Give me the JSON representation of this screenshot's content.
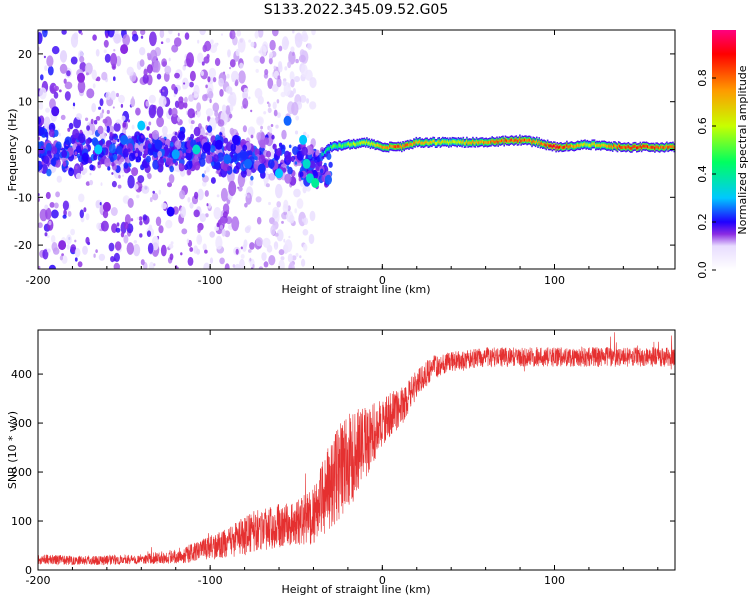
{
  "title": "S133.2022.345.09.52.G05",
  "chart_data": [
    {
      "type": "heatmap",
      "title": "",
      "xlabel": "Height of straight line (km)",
      "ylabel": "Frequency (Hz)",
      "xlim": [
        -200,
        170
      ],
      "ylim": [
        -25,
        25
      ],
      "xticks": [
        -200,
        -100,
        0,
        100
      ],
      "yticks": [
        -20,
        -10,
        0,
        10,
        20
      ],
      "colorbar": {
        "label": "Normalized spectral amplitude",
        "range": [
          0,
          1
        ],
        "ticks": [
          0.0,
          0.2,
          0.4,
          0.6,
          0.8
        ],
        "colormap": [
          "#ffffff",
          "#e8dcff",
          "#8a2be2",
          "#1f00ff",
          "#00c8ff",
          "#00ff60",
          "#c8ff00",
          "#ff9900",
          "#ff0000",
          "#ff007f"
        ]
      },
      "ridge": {
        "x": [
          -35,
          -30,
          -20,
          -10,
          0,
          10,
          20,
          40,
          60,
          80,
          90,
          100,
          120,
          140,
          170
        ],
        "freq": [
          -1.0,
          0.5,
          1.0,
          1.5,
          0.5,
          0.5,
          1.5,
          1.5,
          1.5,
          2.0,
          1.5,
          0.5,
          1.0,
          0.5,
          0.5
        ],
        "amp": [
          0.35,
          0.45,
          0.55,
          0.6,
          0.7,
          0.85,
          0.7,
          0.6,
          0.75,
          0.85,
          0.7,
          0.9,
          0.6,
          0.85,
          0.8
        ]
      },
      "blobs": [
        {
          "x": -165,
          "y": 0.0,
          "a": 0.3
        },
        {
          "x": -150,
          "y": 2.0,
          "a": 0.25
        },
        {
          "x": -140,
          "y": 5.0,
          "a": 0.3
        },
        {
          "x": -130,
          "y": 1.0,
          "a": 0.22
        },
        {
          "x": -120,
          "y": -1.0,
          "a": 0.28
        },
        {
          "x": -108,
          "y": 0.0,
          "a": 0.35
        },
        {
          "x": -102,
          "y": 0.5,
          "a": 0.2
        },
        {
          "x": -95,
          "y": 1.0,
          "a": 0.2
        },
        {
          "x": -90,
          "y": -2.0,
          "a": 0.25
        },
        {
          "x": -85,
          "y": 2.0,
          "a": 0.2
        },
        {
          "x": -78,
          "y": -3.0,
          "a": 0.25
        },
        {
          "x": -70,
          "y": -4.0,
          "a": 0.22
        },
        {
          "x": -60,
          "y": -5.0,
          "a": 0.3
        },
        {
          "x": -55,
          "y": 6.0,
          "a": 0.25
        },
        {
          "x": -46,
          "y": 2.0,
          "a": 0.3
        },
        {
          "x": -44,
          "y": -3.0,
          "a": 0.35
        },
        {
          "x": -42,
          "y": -6.0,
          "a": 0.35
        },
        {
          "x": -39,
          "y": -7.0,
          "a": 0.4
        },
        {
          "x": -175,
          "y": 15.0,
          "a": 0.15
        },
        {
          "x": -160,
          "y": -12.0,
          "a": 0.15
        },
        {
          "x": -123,
          "y": -13.0,
          "a": 0.2
        },
        {
          "x": -186,
          "y": -20.0,
          "a": 0.15
        },
        {
          "x": -150,
          "y": 21.0,
          "a": 0.15
        },
        {
          "x": -190,
          "y": 8.0,
          "a": 0.18
        }
      ]
    },
    {
      "type": "line",
      "title": "",
      "xlabel": "Height of straight line (km)",
      "ylabel": "SNR (10 * v/v)",
      "xlim": [
        -200,
        170
      ],
      "ylim": [
        0,
        490
      ],
      "xticks": [
        -200,
        -100,
        0,
        100
      ],
      "yticks": [
        0,
        100,
        200,
        300,
        400
      ],
      "color": "#e53030",
      "series": [
        {
          "x": [
            -200,
            -180,
            -160,
            -140,
            -120,
            -110,
            -100,
            -90,
            -80,
            -70,
            -60,
            -50,
            -40,
            -35,
            -30,
            -25,
            -20,
            -15,
            -10,
            -5,
            0,
            5,
            10,
            15,
            20,
            25,
            30,
            40,
            50,
            60,
            80,
            100,
            120,
            140,
            160,
            170
          ],
          "mean": [
            22,
            20,
            20,
            22,
            28,
            35,
            45,
            55,
            70,
            85,
            90,
            95,
            110,
            150,
            170,
            200,
            220,
            240,
            260,
            280,
            300,
            320,
            330,
            350,
            380,
            400,
            415,
            425,
            430,
            435,
            435,
            435,
            435,
            435,
            435,
            435
          ],
          "noise": [
            10,
            10,
            10,
            10,
            15,
            20,
            25,
            30,
            40,
            45,
            45,
            45,
            60,
            80,
            90,
            100,
            100,
            90,
            80,
            60,
            50,
            45,
            40,
            35,
            30,
            25,
            25,
            20,
            20,
            20,
            20,
            20,
            20,
            20,
            20,
            20
          ]
        }
      ]
    }
  ]
}
